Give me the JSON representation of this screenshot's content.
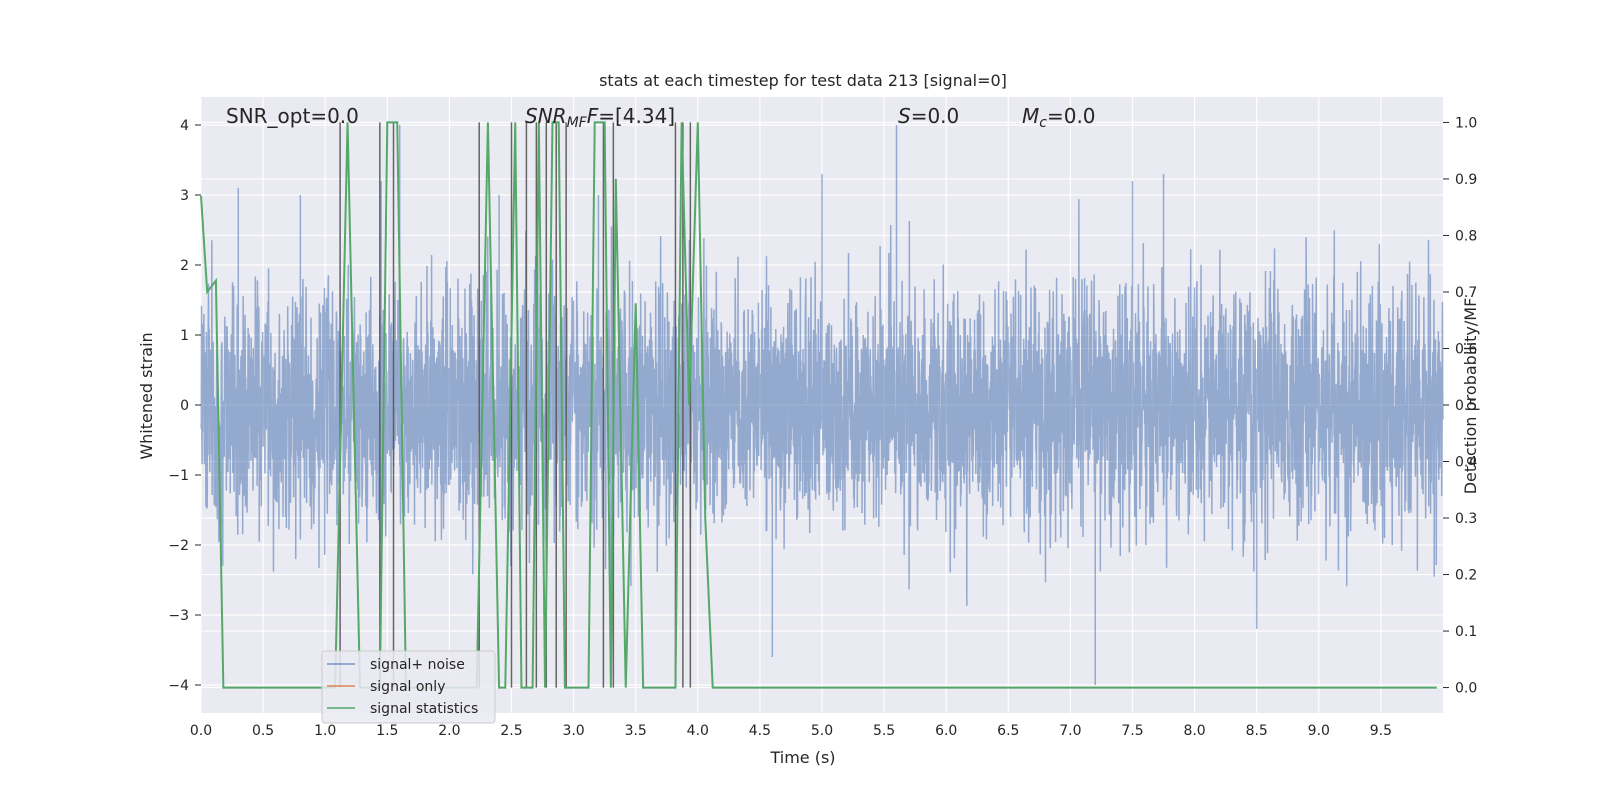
{
  "chart_data": {
    "type": "line",
    "title": "stats at each timestep for test data 213 [signal=0]",
    "xlabel": "Time (s)",
    "ylabel": "Whitened strain",
    "y2label": "Detection probability/MF",
    "xlim": [
      0.0,
      10.0
    ],
    "ylim": [
      -4.4,
      4.4
    ],
    "y2lim": [
      -0.045,
      1.045
    ],
    "xticks": [
      "0.0",
      "0.5",
      "1.0",
      "1.5",
      "2.0",
      "2.5",
      "3.0",
      "3.5",
      "4.0",
      "4.5",
      "5.0",
      "5.5",
      "6.0",
      "6.5",
      "7.0",
      "7.5",
      "8.0",
      "8.5",
      "9.0",
      "9.5"
    ],
    "yticks": [
      "4",
      "3",
      "2",
      "1",
      "0",
      "−1",
      "−2",
      "−3",
      "−4"
    ],
    "y2ticks": [
      "1.0",
      "0.9",
      "0.8",
      "0.7",
      "0.6",
      "0.5",
      "0.4",
      "0.3",
      "0.2",
      "0.1",
      "0.0"
    ],
    "grid": true,
    "background": "#eaeaf2",
    "colors": {
      "signal_noise": "#4c72b0",
      "signal_only": "#dd8452",
      "statistics": "#55a868",
      "vlines": "#555555"
    },
    "annotations": {
      "snr_opt": "SNR_opt=0.0",
      "snr_mf_base": "SNR",
      "snr_mf_sub": "MF",
      "snr_mf_rest": "=[4.34]",
      "s_var": "S",
      "s_rest": "=0.0",
      "mc_var": "M",
      "mc_sub": "c",
      "mc_rest": "=0.0"
    },
    "legend": {
      "placement": "lower-left",
      "entries": [
        "signal+ noise",
        "signal only",
        "signal statistics"
      ]
    },
    "series": [
      {
        "name": "signal+ noise",
        "envelope_description": "whitened noise, |y| mostly below ~2.5, peaks near 4",
        "peaks": [
          [
            0.3,
            3.1
          ],
          [
            0.8,
            3.0
          ],
          [
            1.45,
            3.2
          ],
          [
            1.6,
            4.0
          ],
          [
            2.4,
            3.0
          ],
          [
            3.2,
            3.0
          ],
          [
            5.0,
            3.3
          ],
          [
            5.6,
            4.0
          ],
          [
            7.5,
            3.2
          ],
          [
            7.75,
            3.3
          ],
          [
            7.2,
            -4.0
          ],
          [
            3.3,
            -3.0
          ],
          [
            4.6,
            -3.6
          ],
          [
            8.5,
            -3.2
          ]
        ]
      },
      {
        "name": "signal only",
        "x": [
          0.0,
          10.0
        ],
        "y": [
          0.0,
          0.0
        ]
      },
      {
        "name": "signal statistics",
        "x": [
          0.0,
          0.05,
          0.12,
          0.18,
          1.08,
          1.18,
          1.28,
          1.44,
          1.5,
          1.58,
          1.65,
          2.22,
          2.31,
          2.4,
          2.45,
          2.53,
          2.58,
          2.67,
          2.72,
          2.77,
          2.83,
          2.88,
          2.93,
          3.12,
          3.17,
          3.25,
          3.3,
          3.34,
          3.42,
          3.5,
          3.56,
          3.82,
          3.87,
          3.93,
          4.0,
          4.06,
          4.12,
          9.95
        ],
        "y": [
          0.87,
          0.7,
          0.72,
          0.0,
          0.0,
          1.0,
          0.0,
          0.0,
          1.0,
          1.0,
          0.0,
          0.0,
          1.0,
          0.0,
          0.0,
          1.0,
          0.0,
          0.0,
          1.0,
          0.0,
          1.0,
          1.0,
          0.0,
          0.0,
          1.0,
          1.0,
          0.0,
          0.9,
          0.0,
          0.68,
          0.0,
          0.0,
          1.0,
          0.5,
          1.0,
          0.3,
          0.0,
          0.0
        ]
      }
    ],
    "vlines_x": [
      1.12,
      1.44,
      1.55,
      2.24,
      2.5,
      2.62,
      2.7,
      2.78,
      2.86,
      2.94,
      3.24,
      3.32,
      3.82,
      3.88,
      3.94
    ]
  }
}
